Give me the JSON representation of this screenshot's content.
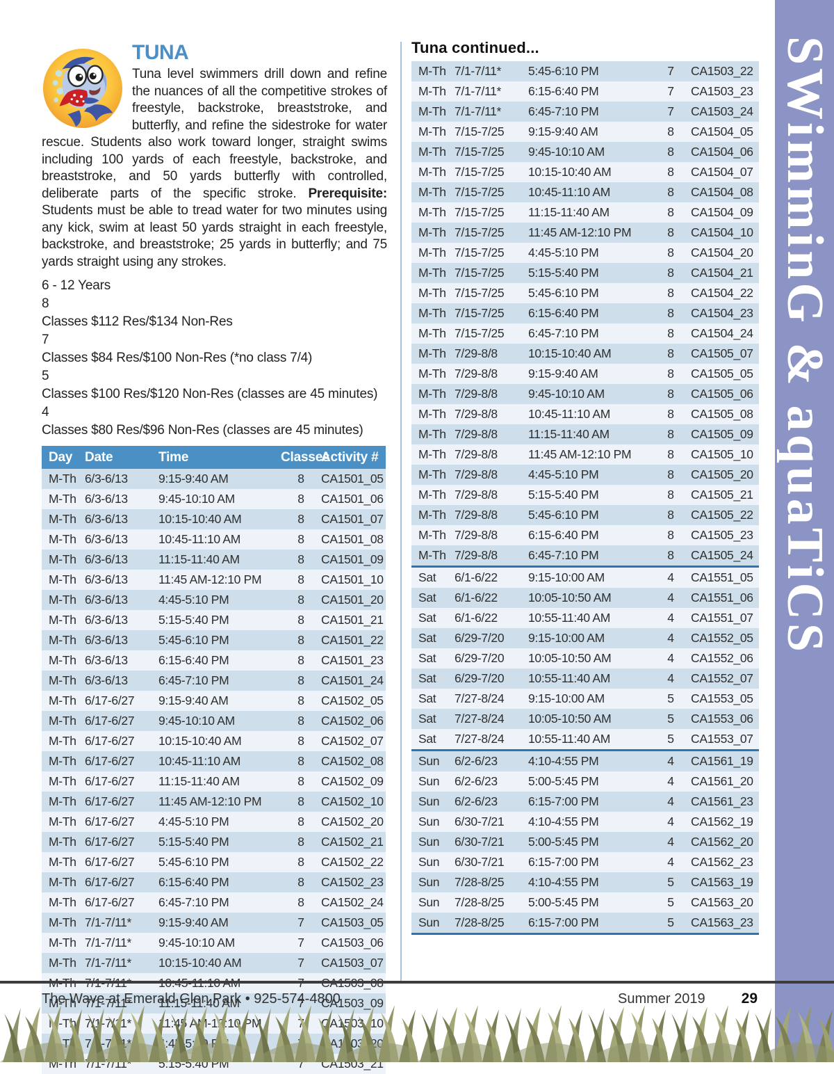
{
  "program": {
    "title": "TUNA",
    "description_before": "Tuna level swimmers drill down and refine the nuances of all the competitive strokes of freestyle, backstroke, breaststroke, and butterfly, and refine the sidestroke for water rescue. Students also work toward longer, straight swims including 100 yards of each freestyle, backstroke, and breaststroke, and 50 yards butterfly with controlled, deliberate parts of the specific stroke. ",
    "prerequisite_label": "Prerequisite:",
    "description_after": " Students must be able to tread water for two minutes using any kick, swim at least 50 yards straight in each freestyle, backstroke, and breaststroke; 25 yards in butterfly; and 75 yards straight using any strokes.",
    "age_range": "6 - 12 Years",
    "pricing": [
      {
        "label": "8 Classes",
        "price": "$112 Res/$134 Non-Res"
      },
      {
        "label": "7 Classes",
        "price": "$84 Res/$100 Non-Res (*no class 7/4)"
      },
      {
        "label": "5 Classes",
        "price": "$100 Res/$120 Non-Res (classes are 45 minutes)"
      },
      {
        "label": "4 Classes",
        "price": "$80 Res/$96 Non-Res (classes are 45 minutes)"
      }
    ]
  },
  "table": {
    "headers": [
      "Day",
      "Date",
      "Time",
      "Classes",
      "Activity #"
    ],
    "right_heading": "Tuna continued...",
    "left_rows": [
      [
        "M-Th",
        "6/3-6/13",
        "9:15-9:40 AM",
        "8",
        "CA1501_05"
      ],
      [
        "M-Th",
        "6/3-6/13",
        "9:45-10:10 AM",
        "8",
        "CA1501_06"
      ],
      [
        "M-Th",
        "6/3-6/13",
        "10:15-10:40 AM",
        "8",
        "CA1501_07"
      ],
      [
        "M-Th",
        "6/3-6/13",
        "10:45-11:10 AM",
        "8",
        "CA1501_08"
      ],
      [
        "M-Th",
        "6/3-6/13",
        "11:15-11:40 AM",
        "8",
        "CA1501_09"
      ],
      [
        "M-Th",
        "6/3-6/13",
        "11:45 AM-12:10 PM",
        "8",
        "CA1501_10"
      ],
      [
        "M-Th",
        "6/3-6/13",
        "4:45-5:10 PM",
        "8",
        "CA1501_20"
      ],
      [
        "M-Th",
        "6/3-6/13",
        "5:15-5:40 PM",
        "8",
        "CA1501_21"
      ],
      [
        "M-Th",
        "6/3-6/13",
        "5:45-6:10 PM",
        "8",
        "CA1501_22"
      ],
      [
        "M-Th",
        "6/3-6/13",
        "6:15-6:40 PM",
        "8",
        "CA1501_23"
      ],
      [
        "M-Th",
        "6/3-6/13",
        "6:45-7:10 PM",
        "8",
        "CA1501_24"
      ],
      [
        "M-Th",
        "6/17-6/27",
        "9:15-9:40 AM",
        "8",
        "CA1502_05"
      ],
      [
        "M-Th",
        "6/17-6/27",
        "9:45-10:10 AM",
        "8",
        "CA1502_06"
      ],
      [
        "M-Th",
        "6/17-6/27",
        "10:15-10:40 AM",
        "8",
        "CA1502_07"
      ],
      [
        "M-Th",
        "6/17-6/27",
        "10:45-11:10 AM",
        "8",
        "CA1502_08"
      ],
      [
        "M-Th",
        "6/17-6/27",
        "11:15-11:40 AM",
        "8",
        "CA1502_09"
      ],
      [
        "M-Th",
        "6/17-6/27",
        "11:45 AM-12:10 PM",
        "8",
        "CA1502_10"
      ],
      [
        "M-Th",
        "6/17-6/27",
        "4:45-5:10 PM",
        "8",
        "CA1502_20"
      ],
      [
        "M-Th",
        "6/17-6/27",
        "5:15-5:40 PM",
        "8",
        "CA1502_21"
      ],
      [
        "M-Th",
        "6/17-6/27",
        "5:45-6:10 PM",
        "8",
        "CA1502_22"
      ],
      [
        "M-Th",
        "6/17-6/27",
        "6:15-6:40 PM",
        "8",
        "CA1502_23"
      ],
      [
        "M-Th",
        "6/17-6/27",
        "6:45-7:10 PM",
        "8",
        "CA1502_24"
      ],
      [
        "M-Th",
        "7/1-7/11*",
        "9:15-9:40 AM",
        "7",
        "CA1503_05"
      ],
      [
        "M-Th",
        "7/1-7/11*",
        "9:45-10:10 AM",
        "7",
        "CA1503_06"
      ],
      [
        "M-Th",
        "7/1-7/11*",
        "10:15-10:40 AM",
        "7",
        "CA1503_07"
      ],
      [
        "M-Th",
        "7/1-7/11*",
        "10:45-11:10 AM",
        "7",
        "CA1503_08"
      ],
      [
        "M-Th",
        "7/1-7/11*",
        "11:15-11:40 AM",
        "7",
        "CA1503_09"
      ],
      [
        "M-Th",
        "7/1-7/11*",
        "11:45 AM-12:10 PM",
        "7",
        "CA1503_10"
      ],
      [
        "M-Th",
        "7/1-7/11*",
        "4:45-5:10 PM",
        "7",
        "CA1503_20"
      ],
      [
        "M-Th",
        "7/1-7/11*",
        "5:15-5:40 PM",
        "7",
        "CA1503_21"
      ]
    ],
    "right_rows": [
      [
        "M-Th",
        "7/1-7/11*",
        "5:45-6:10 PM",
        "7",
        "CA1503_22"
      ],
      [
        "M-Th",
        "7/1-7/11*",
        "6:15-6:40 PM",
        "7",
        "CA1503_23"
      ],
      [
        "M-Th",
        "7/1-7/11*",
        "6:45-7:10 PM",
        "7",
        "CA1503_24"
      ],
      [
        "M-Th",
        "7/15-7/25",
        "9:15-9:40 AM",
        "8",
        "CA1504_05"
      ],
      [
        "M-Th",
        "7/15-7/25",
        "9:45-10:10 AM",
        "8",
        "CA1504_06"
      ],
      [
        "M-Th",
        "7/15-7/25",
        "10:15-10:40 AM",
        "8",
        "CA1504_07"
      ],
      [
        "M-Th",
        "7/15-7/25",
        "10:45-11:10 AM",
        "8",
        "CA1504_08"
      ],
      [
        "M-Th",
        "7/15-7/25",
        "11:15-11:40 AM",
        "8",
        "CA1504_09"
      ],
      [
        "M-Th",
        "7/15-7/25",
        "11:45 AM-12:10 PM",
        "8",
        "CA1504_10"
      ],
      [
        "M-Th",
        "7/15-7/25",
        "4:45-5:10 PM",
        "8",
        "CA1504_20"
      ],
      [
        "M-Th",
        "7/15-7/25",
        "5:15-5:40 PM",
        "8",
        "CA1504_21"
      ],
      [
        "M-Th",
        "7/15-7/25",
        "5:45-6:10 PM",
        "8",
        "CA1504_22"
      ],
      [
        "M-Th",
        "7/15-7/25",
        "6:15-6:40 PM",
        "8",
        "CA1504_23"
      ],
      [
        "M-Th",
        "7/15-7/25",
        "6:45-7:10 PM",
        "8",
        "CA1504_24"
      ],
      [
        "M-Th",
        "7/29-8/8",
        "10:15-10:40 AM",
        "8",
        "CA1505_07"
      ],
      [
        "M-Th",
        "7/29-8/8",
        "9:15-9:40 AM",
        "8",
        "CA1505_05"
      ],
      [
        "M-Th",
        "7/29-8/8",
        "9:45-10:10 AM",
        "8",
        "CA1505_06"
      ],
      [
        "M-Th",
        "7/29-8/8",
        "10:45-11:10 AM",
        "8",
        "CA1505_08"
      ],
      [
        "M-Th",
        "7/29-8/8",
        "11:15-11:40 AM",
        "8",
        "CA1505_09"
      ],
      [
        "M-Th",
        "7/29-8/8",
        "11:45 AM-12:10 PM",
        "8",
        "CA1505_10"
      ],
      [
        "M-Th",
        "7/29-8/8",
        "4:45-5:10 PM",
        "8",
        "CA1505_20"
      ],
      [
        "M-Th",
        "7/29-8/8",
        "5:15-5:40 PM",
        "8",
        "CA1505_21"
      ],
      [
        "M-Th",
        "7/29-8/8",
        "5:45-6:10 PM",
        "8",
        "CA1505_22"
      ],
      [
        "M-Th",
        "7/29-8/8",
        "6:15-6:40 PM",
        "8",
        "CA1505_23"
      ],
      [
        "M-Th",
        "7/29-8/8",
        "6:45-7:10 PM",
        "8",
        "CA1505_24"
      ],
      [
        "Sat",
        "6/1-6/22",
        "9:15-10:00 AM",
        "4",
        "CA1551_05"
      ],
      [
        "Sat",
        "6/1-6/22",
        "10:05-10:50 AM",
        "4",
        "CA1551_06"
      ],
      [
        "Sat",
        "6/1-6/22",
        "10:55-11:40 AM",
        "4",
        "CA1551_07"
      ],
      [
        "Sat",
        "6/29-7/20",
        "9:15-10:00 AM",
        "4",
        "CA1552_05"
      ],
      [
        "Sat",
        "6/29-7/20",
        "10:05-10:50 AM",
        "4",
        "CA1552_06"
      ],
      [
        "Sat",
        "6/29-7/20",
        "10:55-11:40 AM",
        "4",
        "CA1552_07"
      ],
      [
        "Sat",
        "7/27-8/24",
        "9:15-10:00 AM",
        "5",
        "CA1553_05"
      ],
      [
        "Sat",
        "7/27-8/24",
        "10:05-10:50 AM",
        "5",
        "CA1553_06"
      ],
      [
        "Sat",
        "7/27-8/24",
        "10:55-11:40 AM",
        "5",
        "CA1553_07"
      ],
      [
        "Sun",
        "6/2-6/23",
        "4:10-4:55 PM",
        "4",
        "CA1561_19"
      ],
      [
        "Sun",
        "6/2-6/23",
        "5:00-5:45 PM",
        "4",
        "CA1561_20"
      ],
      [
        "Sun",
        "6/2-6/23",
        "6:15-7:00 PM",
        "4",
        "CA1561_23"
      ],
      [
        "Sun",
        "6/30-7/21",
        "4:10-4:55 PM",
        "4",
        "CA1562_19"
      ],
      [
        "Sun",
        "6/30-7/21",
        "5:00-5:45 PM",
        "4",
        "CA1562_20"
      ],
      [
        "Sun",
        "6/30-7/21",
        "6:15-7:00 PM",
        "4",
        "CA1562_23"
      ],
      [
        "Sun",
        "7/28-8/25",
        "4:10-4:55 PM",
        "5",
        "CA1563_19"
      ],
      [
        "Sun",
        "7/28-8/25",
        "5:00-5:45 PM",
        "5",
        "CA1563_20"
      ],
      [
        "Sun",
        "7/28-8/25",
        "6:15-7:00 PM",
        "5",
        "CA1563_23"
      ]
    ],
    "right_separators_after": [
      24,
      33,
      42
    ]
  },
  "sidebar": {
    "label": "SWimminG & aquaTiCS"
  },
  "footer": {
    "left": "The Wave at Emerald Glen Park  •  925-574-4800",
    "season": "Summer 2019",
    "page_number": "29"
  },
  "colors": {
    "header_blue": "#4a90c4",
    "row_dark": "#cedeea",
    "row_light": "#eef3f9",
    "separator_blue": "#2e74b5",
    "sidebar_purple": "#8b94c4",
    "title_blue": "#4a8fc7"
  }
}
